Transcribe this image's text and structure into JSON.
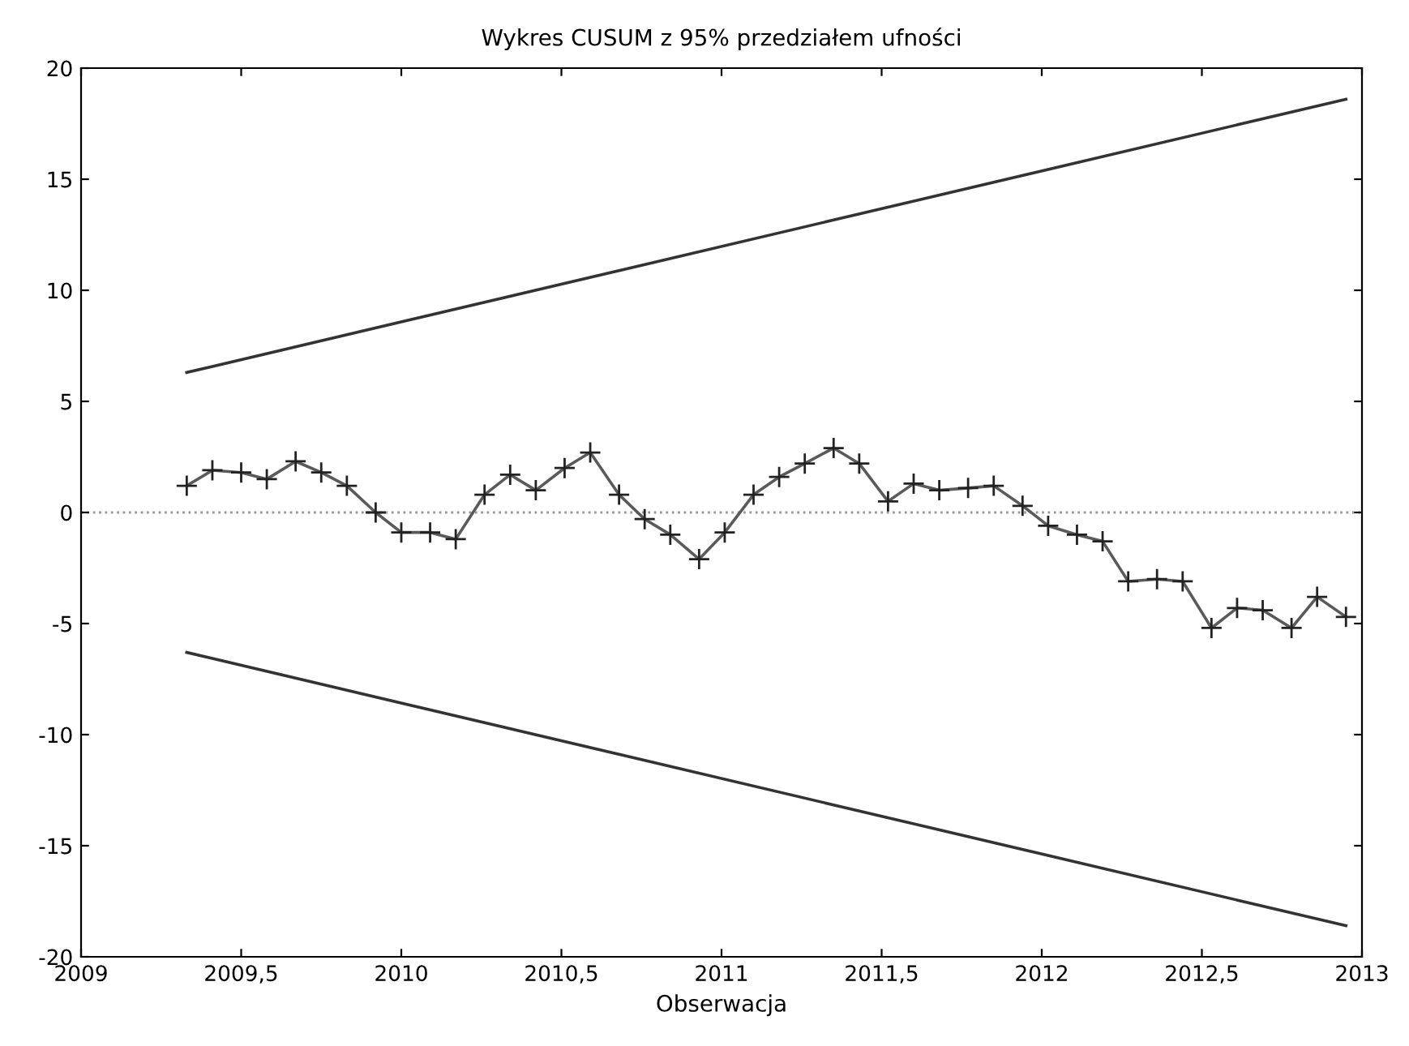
{
  "chart_data": {
    "type": "line",
    "title": "Wykres CUSUM z 95% przedziałem ufności",
    "xlabel": "Obserwacja",
    "series": [
      {
        "color": "#5a5a5a",
        "marker": "cross",
        "x": [
          2009.33,
          2009.41,
          2009.5,
          2009.58,
          2009.67,
          2009.75,
          2009.83,
          2009.92,
          2010.0,
          2010.09,
          2010.17,
          2010.26,
          2010.34,
          2010.42,
          2010.51,
          2010.59,
          2010.68,
          2010.76,
          2010.84,
          2010.93,
          2011.01,
          2011.1,
          2011.18,
          2011.26,
          2011.35,
          2011.43,
          2011.52,
          2011.6,
          2011.68,
          2011.77,
          2011.85,
          2011.94,
          2012.02,
          2012.11,
          2012.19,
          2012.27,
          2012.36,
          2012.44,
          2012.53,
          2012.61,
          2012.69,
          2012.78,
          2012.86,
          2012.95
        ],
        "values": [
          1.2,
          1.9,
          1.8,
          1.5,
          2.3,
          1.8,
          1.2,
          0.0,
          -0.9,
          -0.9,
          -1.2,
          0.8,
          1.7,
          1.0,
          2.0,
          2.7,
          0.8,
          -0.3,
          -1.0,
          -2.1,
          -0.9,
          0.8,
          1.6,
          2.2,
          2.9,
          2.2,
          0.5,
          1.3,
          1.0,
          1.1,
          1.2,
          0.3,
          -0.6,
          -1.0,
          -1.3,
          -3.1,
          -3.0,
          -3.1,
          -5.2,
          -4.3,
          -4.4,
          -5.2,
          -3.8,
          -4.7
        ]
      },
      {
        "color": "#333333",
        "marker": "none",
        "x": [
          2009.33,
          2012.95
        ],
        "values": [
          6.3,
          18.6
        ]
      },
      {
        "color": "#333333",
        "marker": "none",
        "x": [
          2009.33,
          2012.95
        ],
        "values": [
          -6.3,
          -18.6
        ]
      }
    ],
    "ref_lines": [
      {
        "axis": "y",
        "value": 0,
        "color": "#999999",
        "line_style": "dotted"
      }
    ],
    "xlim": [
      2009,
      2013
    ],
    "ylim": [
      -20,
      20
    ],
    "xticks": [
      2009,
      {
        "value": 2009.5,
        "label": "2009,5"
      },
      2010,
      {
        "value": 2010.5,
        "label": "2010,5"
      },
      2011,
      {
        "value": 2011.5,
        "label": "2011,5"
      },
      2012,
      {
        "value": 2012.5,
        "label": "2012,5"
      },
      2013
    ],
    "yticks": [
      -20,
      -15,
      -10,
      -5,
      0,
      5,
      10,
      15,
      20
    ],
    "grid": false,
    "legend": false
  }
}
